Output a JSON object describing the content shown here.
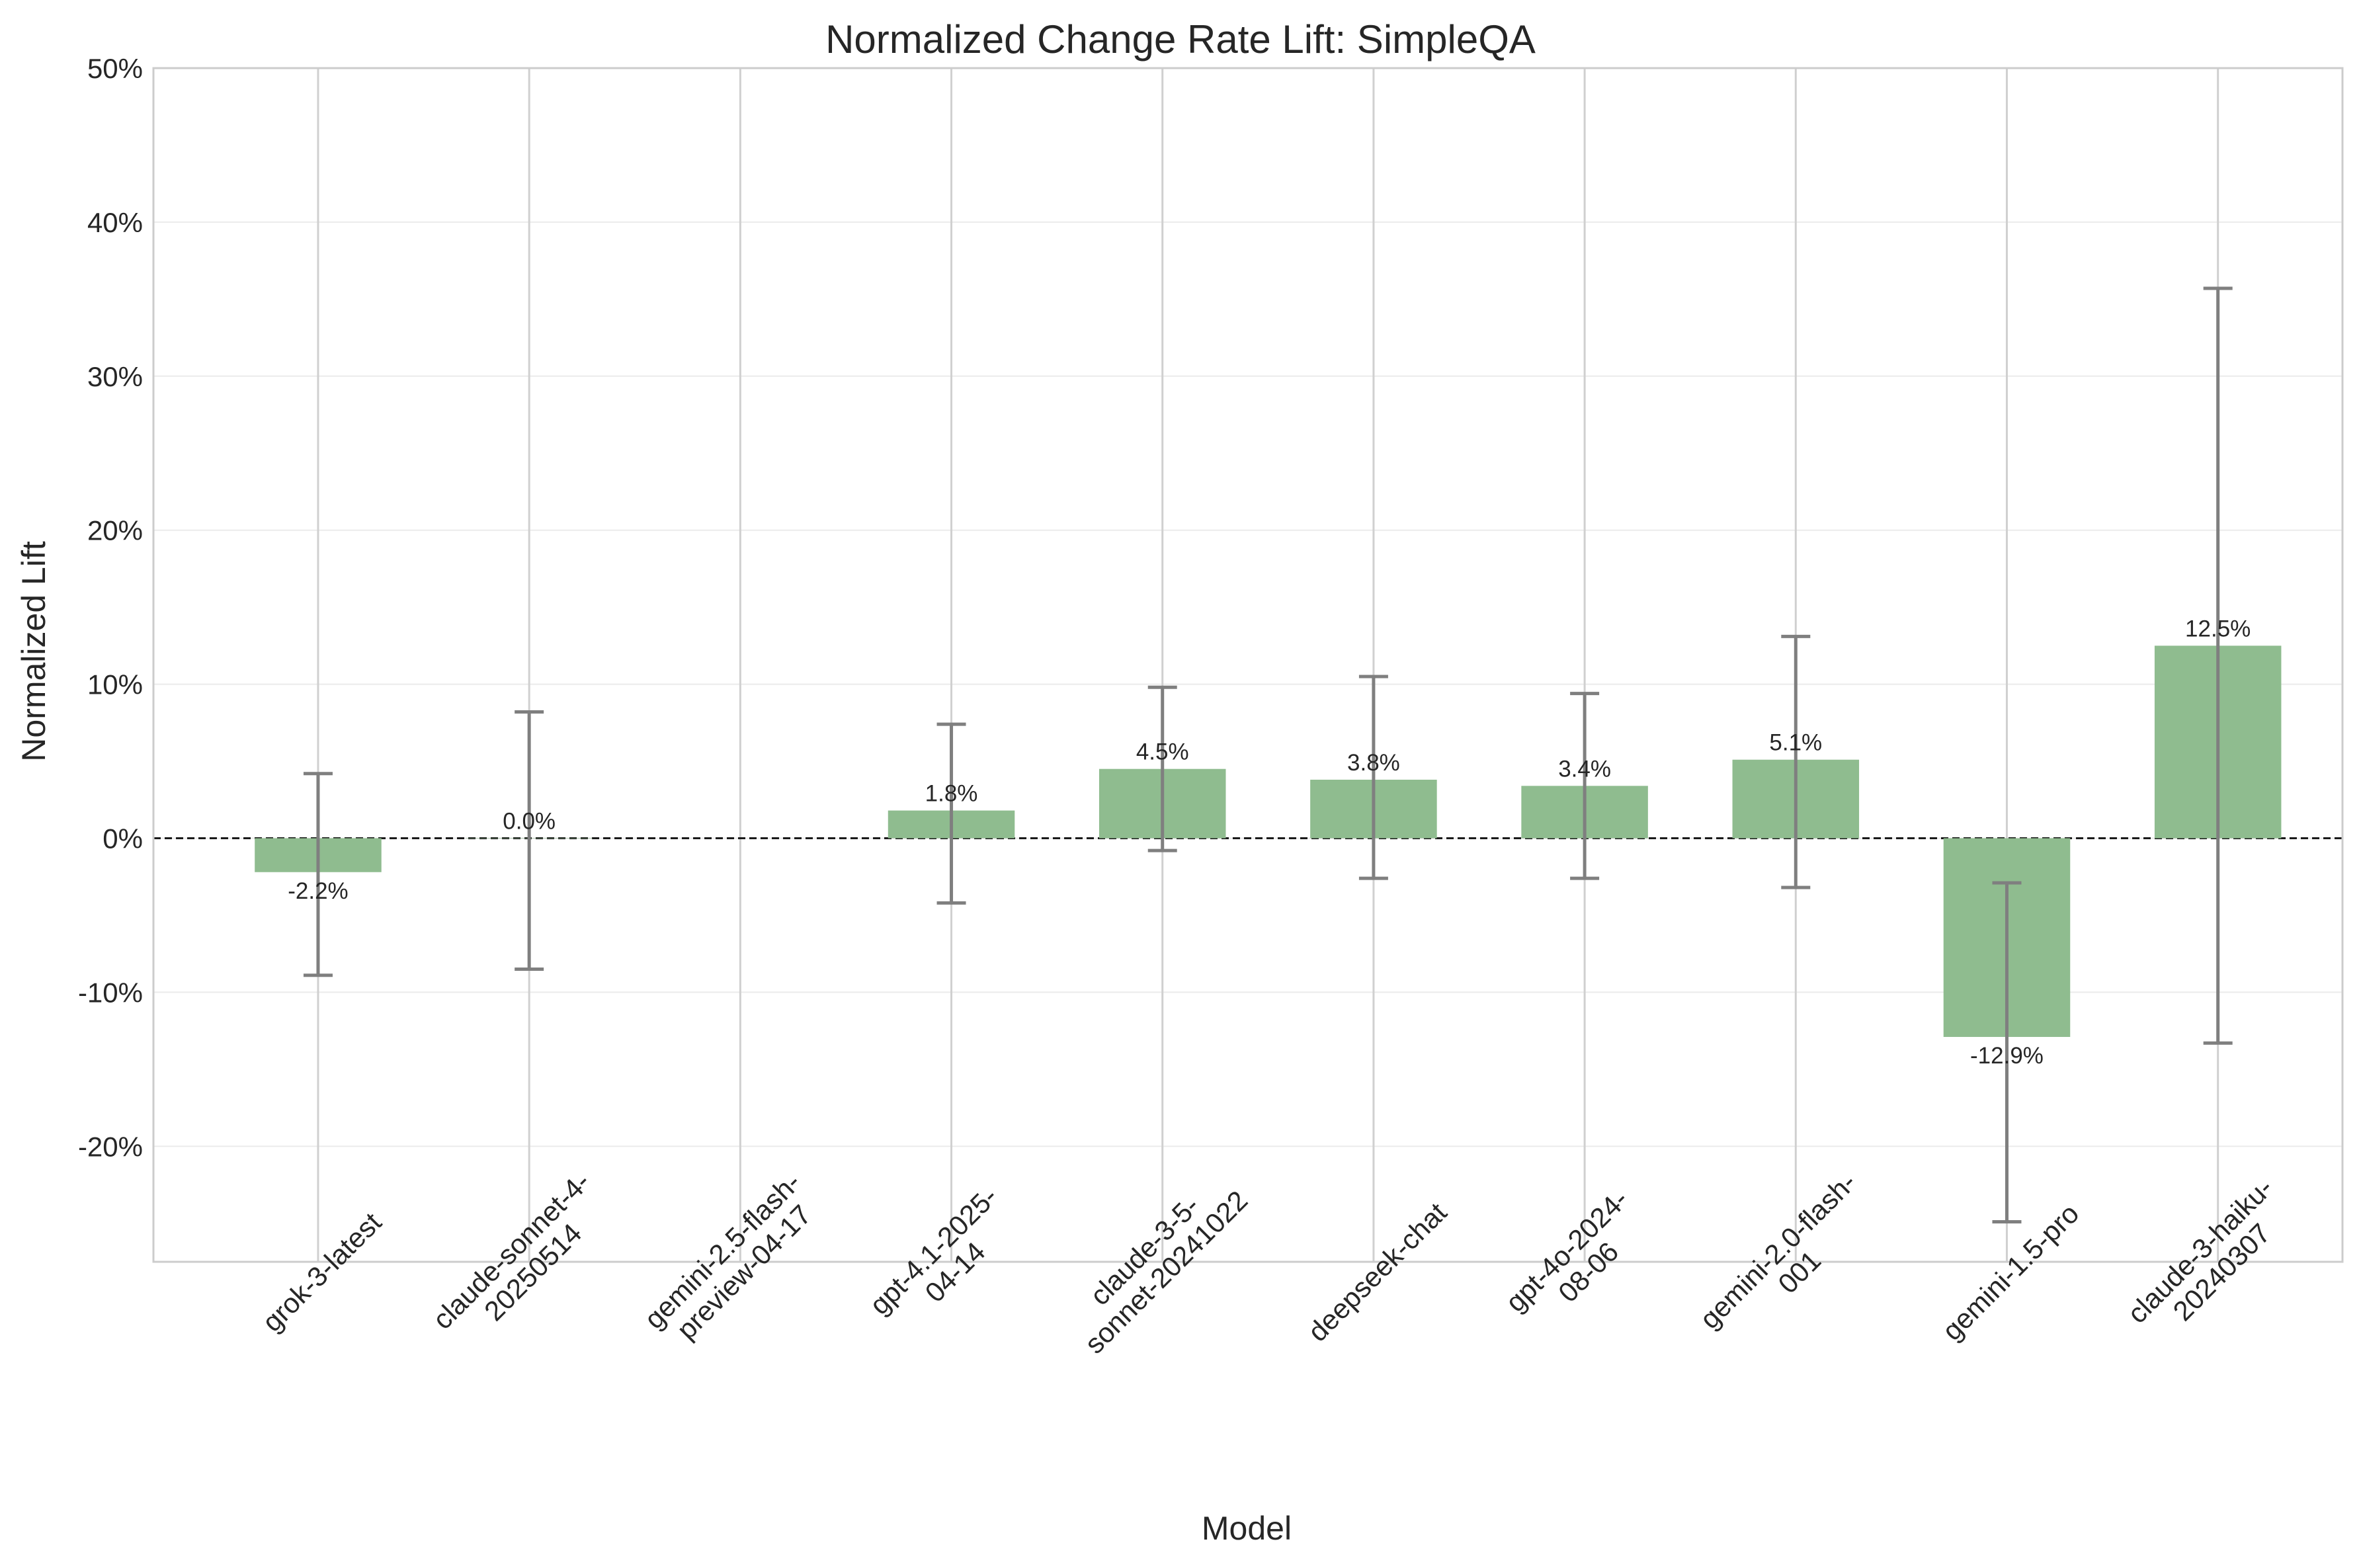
{
  "chart_data": {
    "type": "bar",
    "title": "Normalized Change Rate Lift: SimpleQA",
    "xlabel": "Model",
    "ylabel": "Normalized Lift",
    "ylim": [
      -27.5,
      50
    ],
    "yticks": [
      -20,
      -10,
      0,
      10,
      20,
      30,
      40,
      50
    ],
    "ytick_labels": [
      "-20%",
      "-10%",
      "0%",
      "10%",
      "20%",
      "30%",
      "40%",
      "50%"
    ],
    "grid": true,
    "baseline": 0,
    "bar_color": "#8fbc8f",
    "errorbar_color": "#7f7f7f",
    "categories": [
      [
        "grok-3-latest"
      ],
      [
        "claude-sonnet-4-",
        "20250514"
      ],
      [
        "gemini-2.5-flash-",
        "preview-04-17"
      ],
      [
        "gpt-4.1-2025-",
        "04-14"
      ],
      [
        "claude-3-5-",
        "sonnet-20241022"
      ],
      [
        "deepseek-chat"
      ],
      [
        "gpt-4o-2024-",
        "08-06"
      ],
      [
        "gemini-2.0-flash-",
        "001"
      ],
      [
        "gemini-1.5-pro"
      ],
      [
        "claude-3-haiku-",
        "20240307"
      ]
    ],
    "values": [
      -2.2,
      0.0,
      null,
      1.8,
      4.5,
      3.8,
      3.4,
      5.1,
      -12.9,
      12.5
    ],
    "value_labels": [
      "-2.2%",
      "0.0%",
      "",
      "1.8%",
      "4.5%",
      "3.8%",
      "3.4%",
      "5.1%",
      "-12.9%",
      "12.5%"
    ],
    "error_low": [
      -8.9,
      -8.5,
      null,
      -4.2,
      -0.8,
      -2.6,
      -2.6,
      -3.2,
      -24.9,
      -13.3
    ],
    "error_high": [
      4.2,
      8.2,
      null,
      7.4,
      9.8,
      10.5,
      9.4,
      13.1,
      -2.9,
      35.7
    ]
  }
}
